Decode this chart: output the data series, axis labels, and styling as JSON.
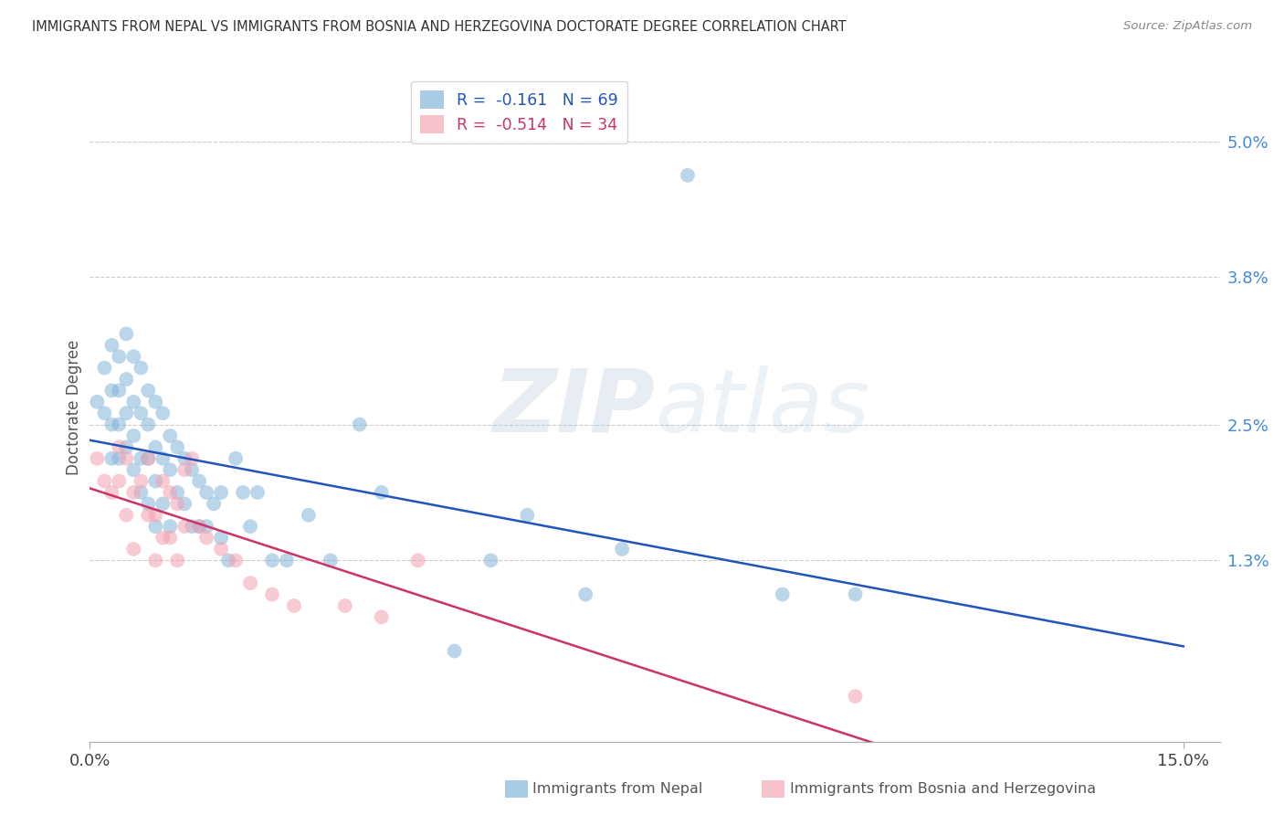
{
  "title": "IMMIGRANTS FROM NEPAL VS IMMIGRANTS FROM BOSNIA AND HERZEGOVINA DOCTORATE DEGREE CORRELATION CHART",
  "source": "Source: ZipAtlas.com",
  "ylabel": "Doctorate Degree",
  "ytick_vals": [
    0.013,
    0.025,
    0.038,
    0.05
  ],
  "ytick_labels": [
    "1.3%",
    "2.5%",
    "3.8%",
    "5.0%"
  ],
  "xtick_vals": [
    0.0,
    0.15
  ],
  "xtick_labels": [
    "0.0%",
    "15.0%"
  ],
  "xlim": [
    0.0,
    0.155
  ],
  "ylim": [
    -0.003,
    0.056
  ],
  "nepal_color": "#7BAFD4",
  "bosnia_color": "#F4A0B0",
  "nepal_line_color": "#2255BB",
  "bosnia_line_color": "#CC3366",
  "watermark_zip": "ZIP",
  "watermark_atlas": "atlas",
  "legend1_text": "R =  -0.161   N = 69",
  "legend2_text": "R =  -0.514   N = 34",
  "bottom_legend_nepal": "Immigrants from Nepal",
  "bottom_legend_bosnia": "Immigrants from Bosnia and Herzegovina",
  "nepal_x": [
    0.001,
    0.002,
    0.002,
    0.003,
    0.003,
    0.003,
    0.003,
    0.004,
    0.004,
    0.004,
    0.004,
    0.005,
    0.005,
    0.005,
    0.005,
    0.006,
    0.006,
    0.006,
    0.006,
    0.007,
    0.007,
    0.007,
    0.007,
    0.008,
    0.008,
    0.008,
    0.008,
    0.009,
    0.009,
    0.009,
    0.009,
    0.01,
    0.01,
    0.01,
    0.011,
    0.011,
    0.011,
    0.012,
    0.012,
    0.013,
    0.013,
    0.014,
    0.014,
    0.015,
    0.015,
    0.016,
    0.016,
    0.017,
    0.018,
    0.018,
    0.019,
    0.02,
    0.021,
    0.022,
    0.023,
    0.025,
    0.027,
    0.03,
    0.033,
    0.037,
    0.05,
    0.06,
    0.068,
    0.073,
    0.082,
    0.095,
    0.105,
    0.04,
    0.055
  ],
  "nepal_y": [
    0.027,
    0.03,
    0.026,
    0.032,
    0.028,
    0.025,
    0.022,
    0.031,
    0.028,
    0.025,
    0.022,
    0.033,
    0.029,
    0.026,
    0.023,
    0.031,
    0.027,
    0.024,
    0.021,
    0.03,
    0.026,
    0.022,
    0.019,
    0.028,
    0.025,
    0.022,
    0.018,
    0.027,
    0.023,
    0.02,
    0.016,
    0.026,
    0.022,
    0.018,
    0.024,
    0.021,
    0.016,
    0.023,
    0.019,
    0.022,
    0.018,
    0.021,
    0.016,
    0.02,
    0.016,
    0.019,
    0.016,
    0.018,
    0.019,
    0.015,
    0.013,
    0.022,
    0.019,
    0.016,
    0.019,
    0.013,
    0.013,
    0.017,
    0.013,
    0.025,
    0.005,
    0.017,
    0.01,
    0.014,
    0.047,
    0.01,
    0.01,
    0.019,
    0.013
  ],
  "bosnia_x": [
    0.001,
    0.002,
    0.003,
    0.004,
    0.004,
    0.005,
    0.005,
    0.006,
    0.006,
    0.007,
    0.008,
    0.008,
    0.009,
    0.009,
    0.01,
    0.01,
    0.011,
    0.011,
    0.012,
    0.012,
    0.013,
    0.013,
    0.014,
    0.015,
    0.016,
    0.018,
    0.02,
    0.022,
    0.025,
    0.028,
    0.035,
    0.04,
    0.045,
    0.105
  ],
  "bosnia_y": [
    0.022,
    0.02,
    0.019,
    0.023,
    0.02,
    0.022,
    0.017,
    0.019,
    0.014,
    0.02,
    0.022,
    0.017,
    0.017,
    0.013,
    0.02,
    0.015,
    0.019,
    0.015,
    0.018,
    0.013,
    0.021,
    0.016,
    0.022,
    0.016,
    0.015,
    0.014,
    0.013,
    0.011,
    0.01,
    0.009,
    0.009,
    0.008,
    0.013,
    0.001
  ]
}
